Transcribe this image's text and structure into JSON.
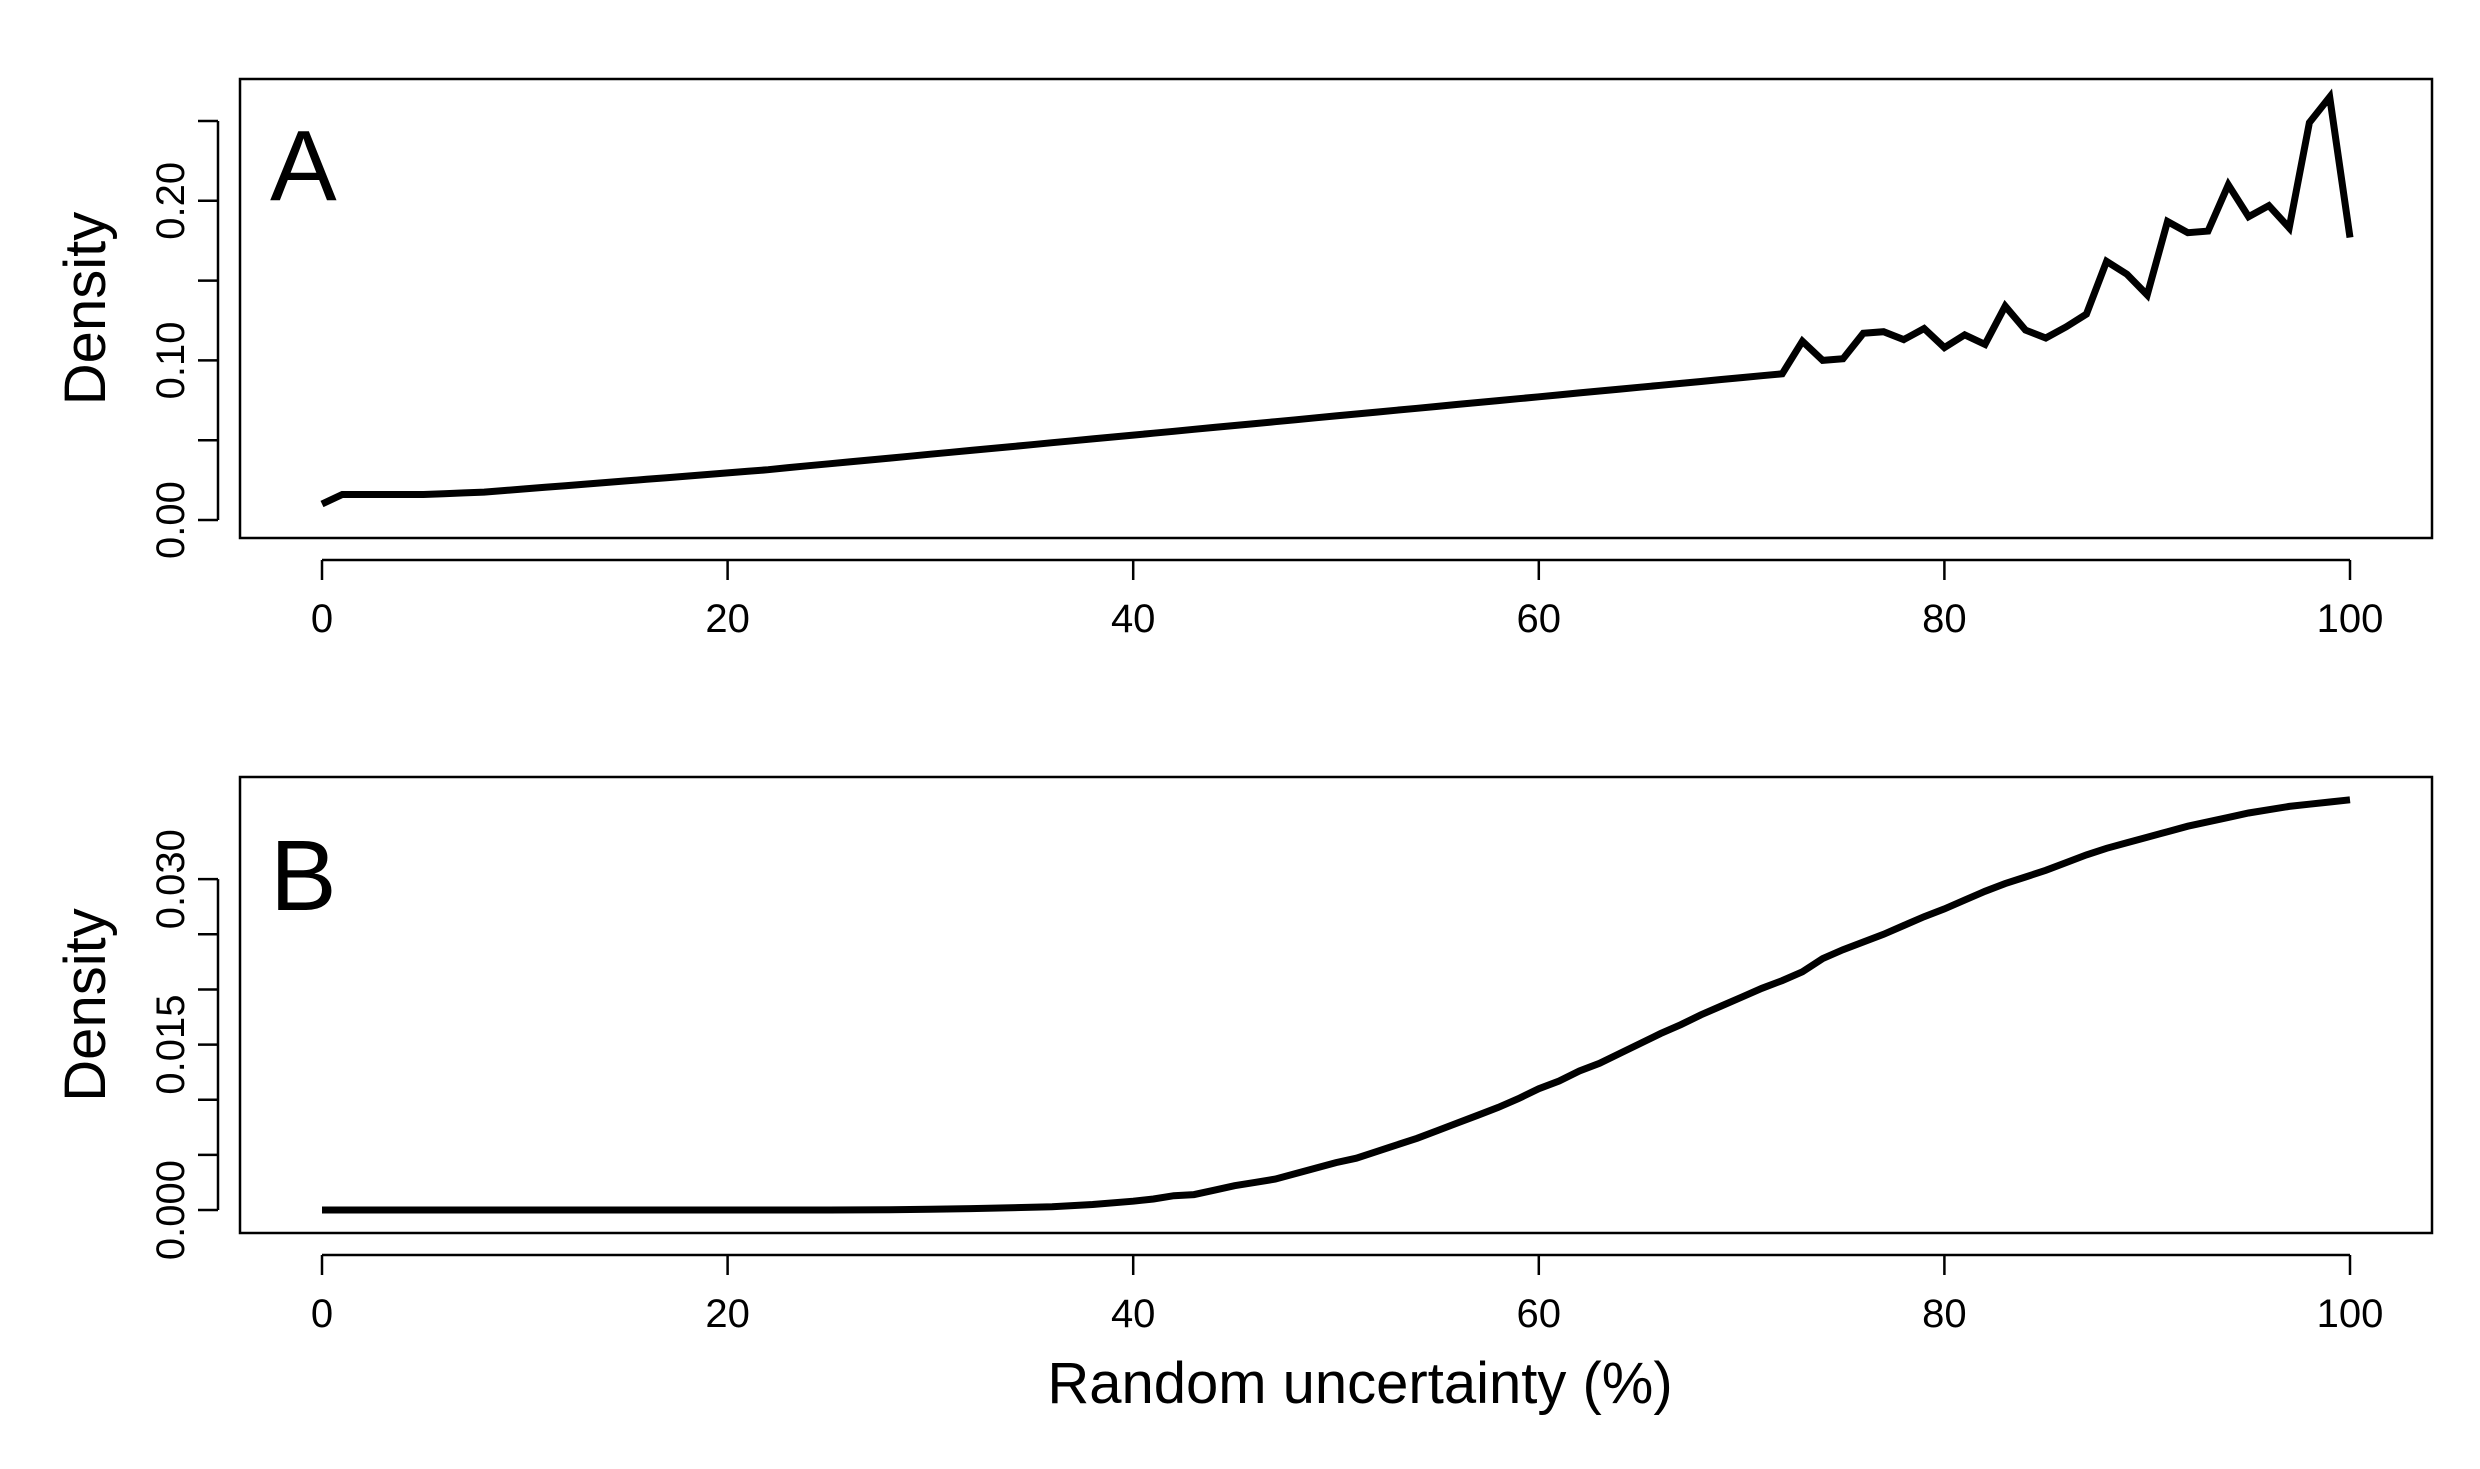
{
  "chart_data": [
    {
      "type": "line",
      "panel_label": "A",
      "title": "",
      "xlabel": "",
      "ylabel": "Density",
      "xlim": [
        0,
        100
      ],
      "ylim": [
        0.0,
        0.26
      ],
      "xticks": [
        0,
        20,
        40,
        60,
        80,
        100
      ],
      "xtick_labels": [
        "0",
        "20",
        "40",
        "60",
        "80",
        "100"
      ],
      "yticks": [
        0.0,
        0.05,
        0.1,
        0.15,
        0.2,
        0.25
      ],
      "ytick_labels": [
        "0.00",
        "",
        "0.10",
        "",
        "0.20",
        ""
      ],
      "grid": false,
      "legend": "none",
      "line_color": "#000000",
      "x": [
        0,
        1,
        2,
        3,
        4,
        5,
        6,
        7,
        8,
        9,
        10,
        11,
        12,
        13,
        14,
        15,
        16,
        17,
        18,
        19,
        20,
        21,
        22,
        23,
        24,
        25,
        26,
        27,
        28,
        29,
        30,
        31,
        32,
        33,
        34,
        35,
        36,
        37,
        38,
        39,
        40,
        41,
        42,
        43,
        44,
        45,
        46,
        47,
        48,
        49,
        50,
        51,
        52,
        53,
        54,
        55,
        56,
        57,
        58,
        59,
        60,
        61,
        62,
        63,
        64,
        65,
        66,
        67,
        68,
        69,
        70,
        71,
        72,
        73,
        74,
        75,
        76,
        77,
        78,
        79,
        80,
        81,
        82,
        83,
        84,
        85,
        86,
        87,
        88,
        89,
        90,
        91,
        92,
        93,
        94,
        95,
        96,
        97,
        98,
        99,
        100
      ],
      "y": [
        0.01,
        0.016,
        0.016,
        0.016,
        0.016,
        0.016,
        0.0165,
        0.017,
        0.0175,
        0.0185,
        0.0195,
        0.0205,
        0.0215,
        0.0225,
        0.0235,
        0.0245,
        0.0255,
        0.0265,
        0.0275,
        0.0285,
        0.0295,
        0.0305,
        0.0315,
        0.0328,
        0.034,
        0.0352,
        0.0364,
        0.0376,
        0.0388,
        0.04,
        0.0412,
        0.0424,
        0.0436,
        0.0448,
        0.046,
        0.0472,
        0.0484,
        0.0496,
        0.0508,
        0.052,
        0.0532,
        0.0544,
        0.0556,
        0.0568,
        0.058,
        0.0592,
        0.0604,
        0.0616,
        0.0628,
        0.064,
        0.0652,
        0.0664,
        0.0676,
        0.0688,
        0.07,
        0.0712,
        0.0724,
        0.0736,
        0.0748,
        0.076,
        0.0772,
        0.0784,
        0.0796,
        0.0808,
        0.082,
        0.0832,
        0.0844,
        0.0856,
        0.0868,
        0.088,
        0.0892,
        0.0904,
        0.0916,
        0.112,
        0.1,
        0.101,
        0.117,
        0.118,
        0.113,
        0.12,
        0.108,
        0.116,
        0.11,
        0.134,
        0.119,
        0.114,
        0.121,
        0.129,
        0.162,
        0.154,
        0.141,
        0.187,
        0.18,
        0.181,
        0.21,
        0.19,
        0.197,
        0.183,
        0.249,
        0.265,
        0.177
      ]
    },
    {
      "type": "line",
      "panel_label": "B",
      "title": "",
      "xlabel": "Random uncertainty (%)",
      "ylabel": "Density",
      "xlim": [
        0,
        100
      ],
      "ylim": [
        0.0,
        0.036
      ],
      "xticks": [
        0,
        20,
        40,
        60,
        80,
        100
      ],
      "xtick_labels": [
        "0",
        "20",
        "40",
        "60",
        "80",
        "100"
      ],
      "yticks": [
        0.0,
        0.005,
        0.01,
        0.015,
        0.02,
        0.025,
        0.03
      ],
      "ytick_labels": [
        "0.000",
        "",
        "",
        "0.015",
        "",
        "",
        "0.030"
      ],
      "grid": false,
      "legend": "none",
      "line_color": "#000000",
      "x": [
        0,
        5,
        10,
        15,
        20,
        25,
        28,
        30,
        32,
        34,
        36,
        38,
        40,
        41,
        42,
        43,
        44,
        45,
        46,
        47,
        48,
        49,
        50,
        51,
        52,
        53,
        54,
        55,
        56,
        57,
        58,
        59,
        60,
        61,
        62,
        63,
        64,
        65,
        66,
        67,
        68,
        69,
        70,
        71,
        72,
        73,
        74,
        75,
        76,
        77,
        78,
        79,
        80,
        81,
        82,
        83,
        84,
        85,
        86,
        87,
        88,
        89,
        90,
        91,
        92,
        93,
        94,
        95,
        96,
        97,
        98,
        99,
        100
      ],
      "y": [
        0.0,
        0.0,
        0.0,
        0.0,
        0.0,
        0.0,
        2e-05,
        6e-05,
        0.00013,
        0.0002,
        0.0003,
        0.0005,
        0.0008,
        0.001,
        0.0013,
        0.0014,
        0.0018,
        0.0022,
        0.0025,
        0.0028,
        0.0033,
        0.0038,
        0.0043,
        0.0047,
        0.0053,
        0.0059,
        0.0065,
        0.0072,
        0.0079,
        0.0086,
        0.0093,
        0.0101,
        0.011,
        0.0117,
        0.0126,
        0.0133,
        0.0142,
        0.0151,
        0.016,
        0.0168,
        0.0177,
        0.0185,
        0.0193,
        0.0201,
        0.0208,
        0.0216,
        0.0228,
        0.0236,
        0.0243,
        0.025,
        0.0258,
        0.0266,
        0.0273,
        0.0281,
        0.0289,
        0.0296,
        0.0302,
        0.0308,
        0.0315,
        0.0322,
        0.0328,
        0.0333,
        0.0338,
        0.0343,
        0.0348,
        0.0352,
        0.0356,
        0.036,
        0.0363,
        0.0366,
        0.0368,
        0.037,
        0.0372
      ]
    }
  ]
}
